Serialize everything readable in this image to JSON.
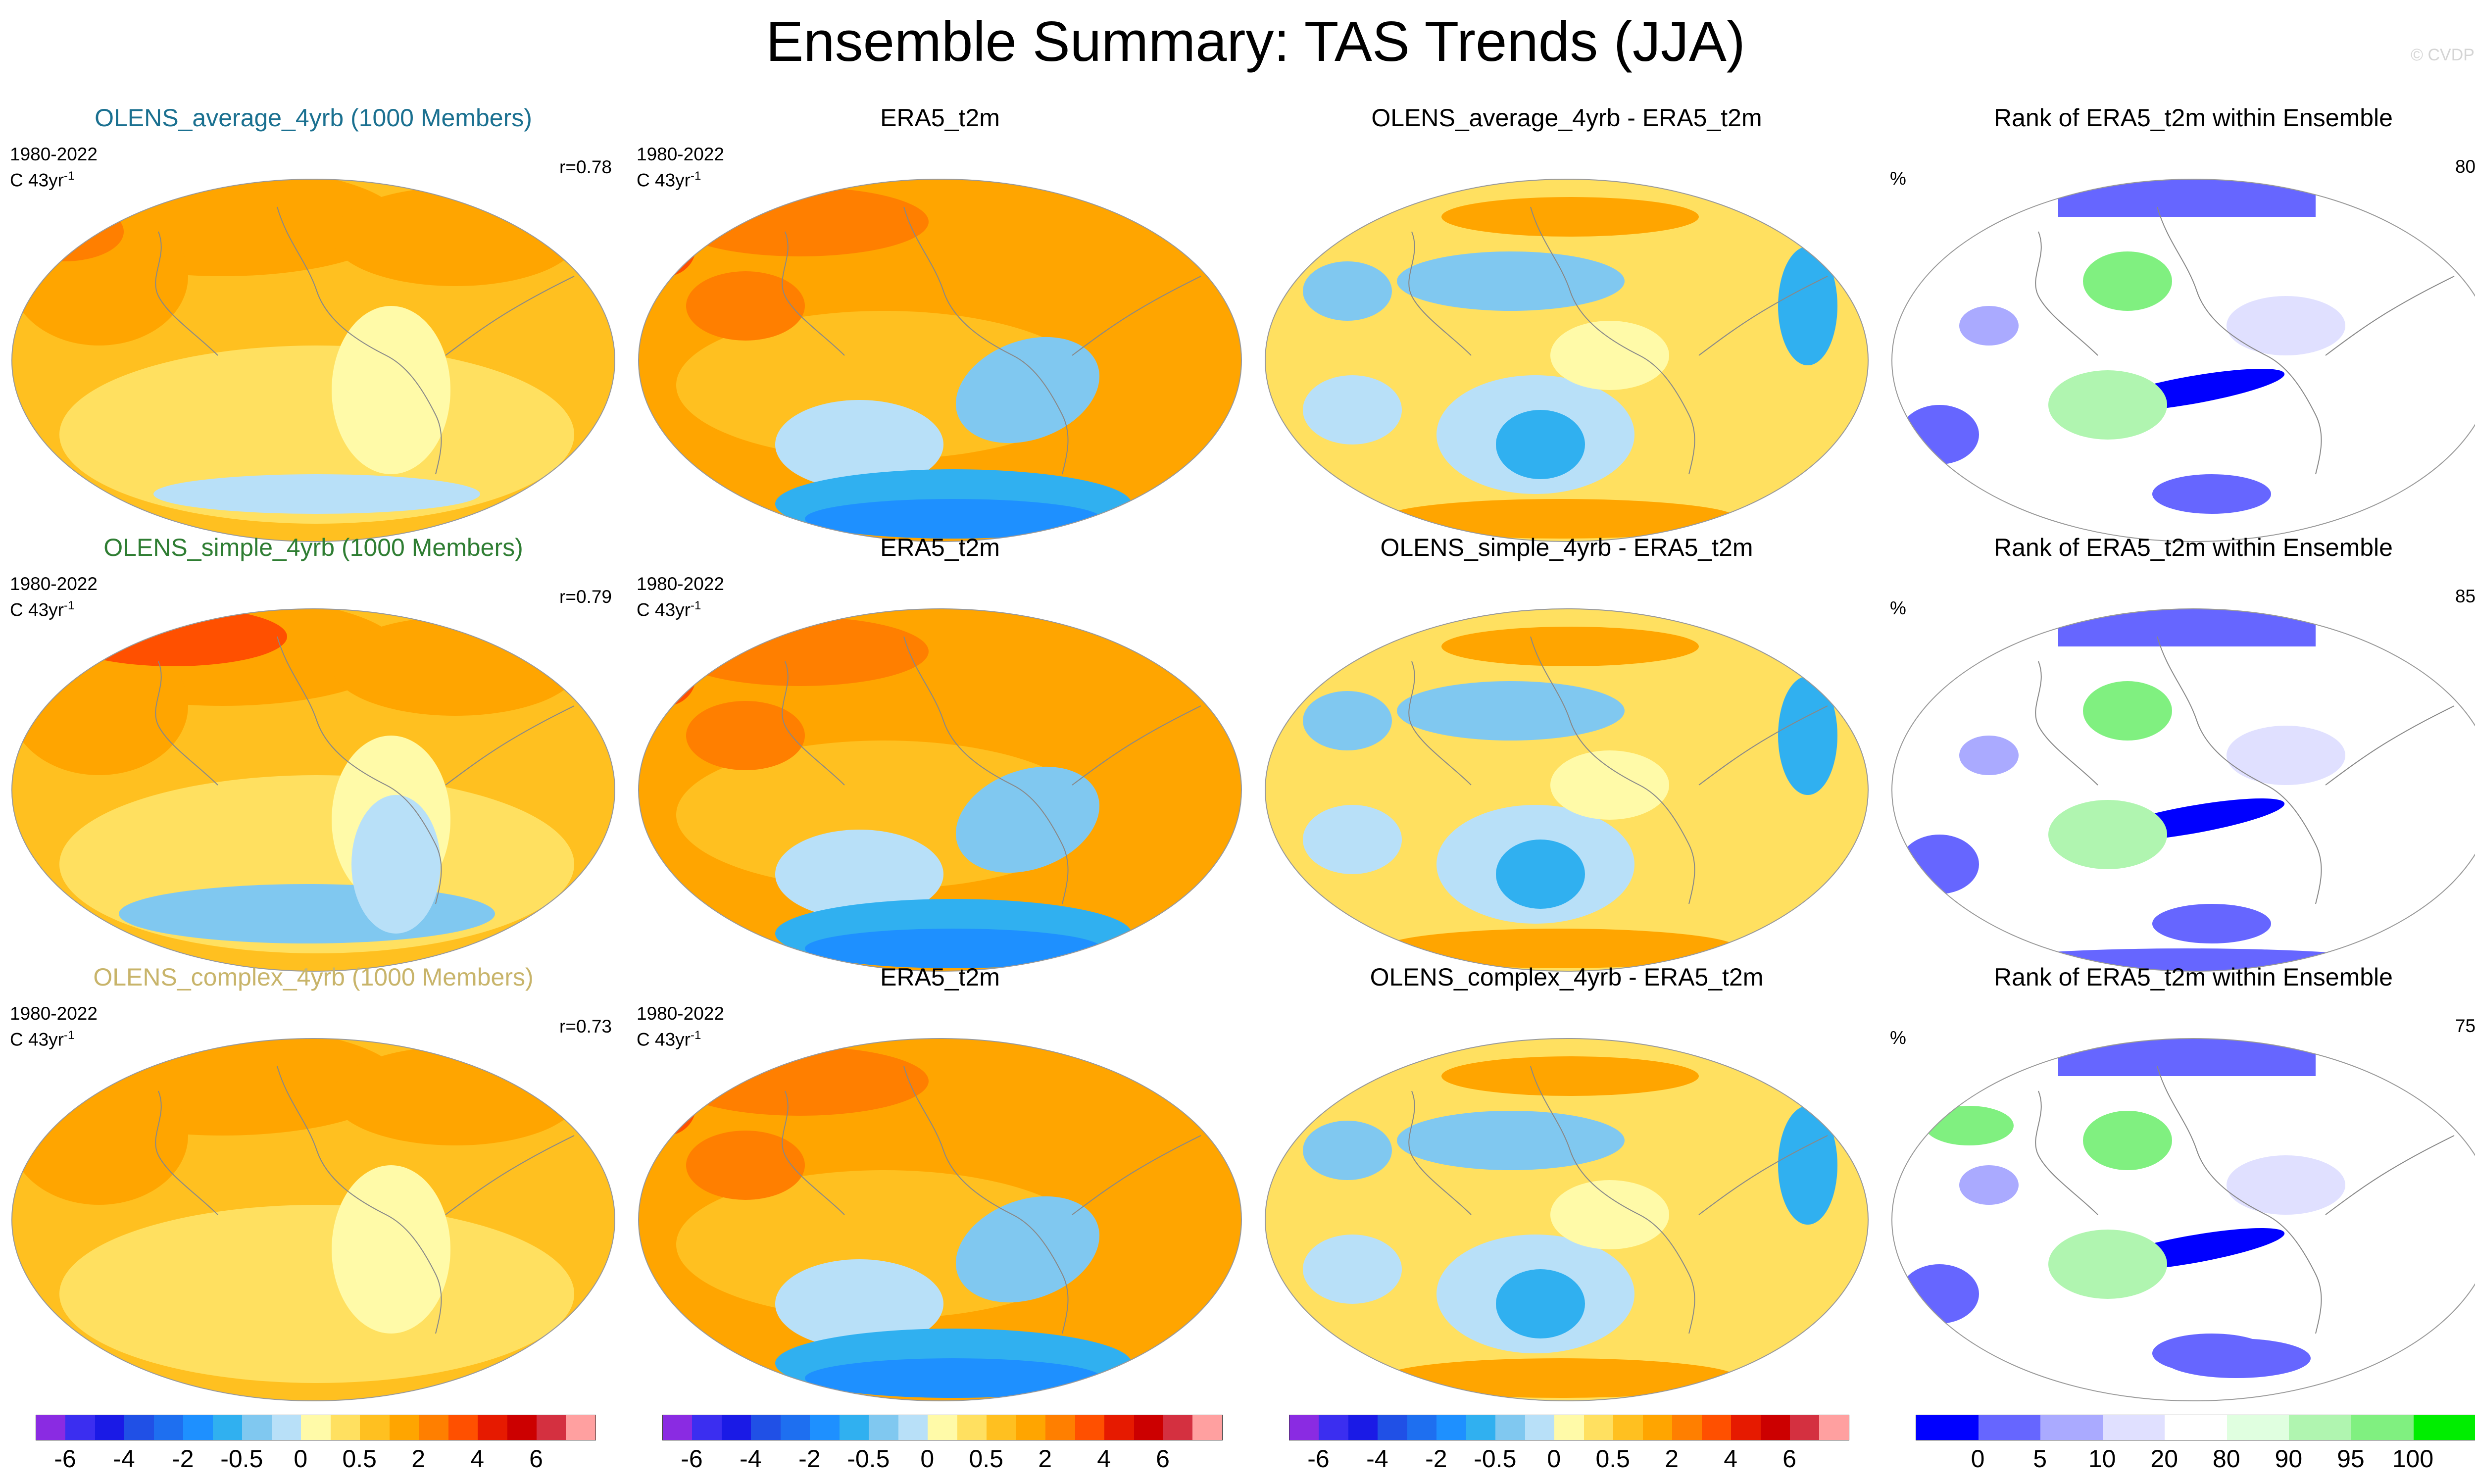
{
  "figure": {
    "title": "Ensemble Summary: TAS Trends (JJA)",
    "copyright": "© CVDP"
  },
  "colors": {
    "trend_scale": [
      "#8a2be2",
      "#3b2ef0",
      "#1a1ae6",
      "#2050e6",
      "#1e6ff0",
      "#1e90ff",
      "#30b0f0",
      "#80c8f0",
      "#b8e0f8",
      "#fffaa8",
      "#ffe060",
      "#ffc020",
      "#ffa500",
      "#ff7f00",
      "#ff5000",
      "#e61a00",
      "#cc0000",
      "#d43040",
      "#ffa0a0"
    ],
    "rank_scale": [
      "#0000ff",
      "#6666ff",
      "#aaaaff",
      "#e0e0ff",
      "#ffffff",
      "#e0ffe0",
      "#b0f5b0",
      "#80f080",
      "#00ee00"
    ],
    "model_title_1": "#1a7090",
    "model_title_2": "#2e7d32",
    "model_title_3": "#c8b46a"
  },
  "chart_data": [
    {
      "type": "heatmap",
      "row": 1,
      "col": 1,
      "title": "OLENS_average_4yrb (1000 Members)",
      "period": "1980-2022",
      "units": "C 43yr",
      "units_exp": "-1",
      "pattern_correlation": "r=0.78",
      "fields": {
        "land": "warm",
        "ocean": "moderate warming",
        "southern_ocean": "weak warming"
      }
    },
    {
      "type": "heatmap",
      "row": 1,
      "col": 2,
      "title": "ERA5_t2m",
      "period": "1980-2022",
      "units": "C 43yr",
      "units_exp": "-1",
      "fields": {
        "land": "strong warming",
        "east_pacific": "cooling",
        "southern_ocean": "cooling"
      }
    },
    {
      "type": "heatmap",
      "row": 1,
      "col": 3,
      "title": "OLENS_average_4yrb - ERA5_t2m",
      "fields": {
        "pattern": "mixed positive/negative differences"
      }
    },
    {
      "type": "heatmap",
      "row": 1,
      "col": 4,
      "title": "Rank of ERA5_t2m within Ensemble",
      "units": "%",
      "percent_in_range": "80%"
    },
    {
      "type": "heatmap",
      "row": 2,
      "col": 1,
      "title": "OLENS_simple_4yrb (1000 Members)",
      "period": "1980-2022",
      "units": "C 43yr",
      "units_exp": "-1",
      "pattern_correlation": "r=0.79"
    },
    {
      "type": "heatmap",
      "row": 2,
      "col": 2,
      "title": "ERA5_t2m",
      "period": "1980-2022",
      "units": "C 43yr",
      "units_exp": "-1"
    },
    {
      "type": "heatmap",
      "row": 2,
      "col": 3,
      "title": "OLENS_simple_4yrb - ERA5_t2m"
    },
    {
      "type": "heatmap",
      "row": 2,
      "col": 4,
      "title": "Rank of ERA5_t2m within Ensemble",
      "units": "%",
      "percent_in_range": "85%"
    },
    {
      "type": "heatmap",
      "row": 3,
      "col": 1,
      "title": "OLENS_complex_4yrb (1000 Members)",
      "period": "1980-2022",
      "units": "C 43yr",
      "units_exp": "-1",
      "pattern_correlation": "r=0.73"
    },
    {
      "type": "heatmap",
      "row": 3,
      "col": 2,
      "title": "ERA5_t2m",
      "period": "1980-2022",
      "units": "C 43yr",
      "units_exp": "-1"
    },
    {
      "type": "heatmap",
      "row": 3,
      "col": 3,
      "title": "OLENS_complex_4yrb - ERA5_t2m"
    },
    {
      "type": "heatmap",
      "row": 3,
      "col": 4,
      "title": "Rank of ERA5_t2m within Ensemble",
      "units": "%",
      "percent_in_range": "75%"
    }
  ],
  "colorbars": {
    "trend_labels": [
      "-6",
      "-4",
      "-2",
      "-0.5",
      "0",
      "0.5",
      "2",
      "4",
      "6"
    ],
    "rank_labels": [
      "0",
      "5",
      "10",
      "20",
      "80",
      "90",
      "95",
      "100"
    ]
  }
}
